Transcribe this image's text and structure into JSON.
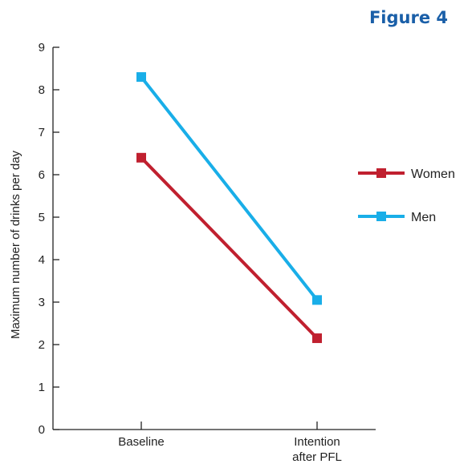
{
  "figure_label": "Figure 4",
  "chart_data": {
    "type": "line",
    "title": "",
    "ylabel": "Maximum number of drinks per day",
    "xlabel": "",
    "categories": [
      [
        "Baseline"
      ],
      [
        "Intention",
        "after PFL"
      ]
    ],
    "ylim": [
      0,
      9
    ],
    "yticks": [
      0,
      1,
      2,
      3,
      4,
      5,
      6,
      7,
      8,
      9
    ],
    "grid": false,
    "legend_position": "right",
    "series": [
      {
        "name": "Women",
        "values": [
          6.4,
          2.15
        ],
        "color": "#c0202f",
        "marker": "square"
      },
      {
        "name": "Men",
        "values": [
          8.3,
          3.05
        ],
        "color": "#19aee8",
        "marker": "square"
      }
    ]
  }
}
